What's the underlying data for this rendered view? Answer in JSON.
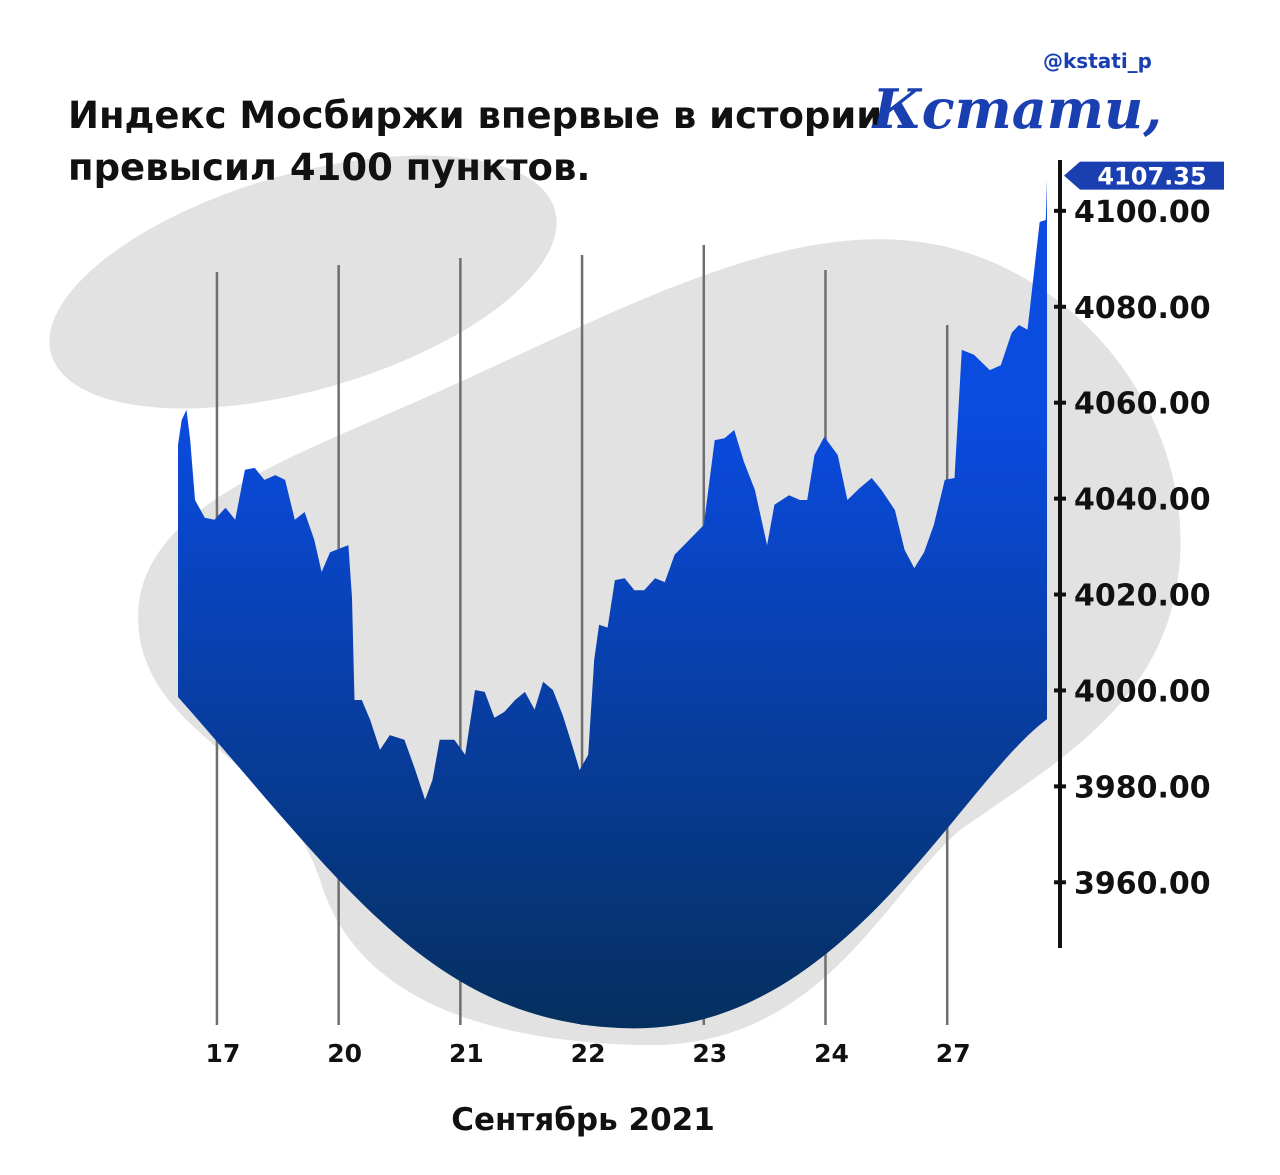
{
  "chart_data": {
    "type": "area",
    "title": [
      "Индекс Мосбиржи впервые в истории",
      "превысил 4100 пунктов."
    ],
    "source": "@kstati_p",
    "brand": "Кстати,",
    "x_label": "Сентябрь 2021",
    "color": "#0a4be0",
    "current_value": 4107.35,
    "xlim": [
      -0.32,
      6.82
    ],
    "xticks": [
      {
        "value": 0,
        "label": "17"
      },
      {
        "value": 1,
        "label": "20"
      },
      {
        "value": 2,
        "label": "21"
      },
      {
        "value": 3,
        "label": "22"
      },
      {
        "value": 4,
        "label": "23"
      },
      {
        "value": 5,
        "label": "24"
      },
      {
        "value": 6,
        "label": "27"
      }
    ],
    "ylim": [
      3946.3,
      4110.6
    ],
    "yticks": [
      {
        "value": 4100,
        "label": "4100.00"
      },
      {
        "value": 4080,
        "label": "4080.00"
      },
      {
        "value": 4060,
        "label": "4060.00"
      },
      {
        "value": 4040,
        "label": "4040.00"
      },
      {
        "value": 4020,
        "label": "4020.00"
      },
      {
        "value": 4000,
        "label": "4000.00"
      },
      {
        "value": 3980,
        "label": "3980.00"
      },
      {
        "value": 3960,
        "label": "3960.00"
      }
    ],
    "x": [
      -0.32,
      -0.29,
      -0.25,
      -0.22,
      -0.18,
      -0.1,
      -0.02,
      0.07,
      0.15,
      0.23,
      0.31,
      0.39,
      0.48,
      0.56,
      0.64,
      0.72,
      0.8,
      0.86,
      0.93,
      1.08,
      1.11,
      1.13,
      1.19,
      1.26,
      1.34,
      1.42,
      1.54,
      1.63,
      1.71,
      1.77,
      1.83,
      1.95,
      2.04,
      2.12,
      2.2,
      2.28,
      2.36,
      2.45,
      2.53,
      2.61,
      2.68,
      2.76,
      2.84,
      2.91,
      2.98,
      3.05,
      3.1,
      3.14,
      3.21,
      3.27,
      3.35,
      3.43,
      3.51,
      3.6,
      3.68,
      3.76,
      3.88,
      4.0,
      4.09,
      4.17,
      4.25,
      4.33,
      4.42,
      4.52,
      4.58,
      4.7,
      4.79,
      4.85,
      4.91,
      4.99,
      5.1,
      5.18,
      5.28,
      5.38,
      5.46,
      5.57,
      5.65,
      5.73,
      5.81,
      5.89,
      5.98,
      6.06,
      6.12,
      6.22,
      6.35,
      6.44,
      6.53,
      6.59,
      6.66,
      6.72,
      6.76,
      6.81,
      6.82
    ],
    "values": [
      4051.2,
      4056.4,
      4058.5,
      4052.2,
      4039.7,
      4036,
      4035.6,
      4038.1,
      4035.6,
      4046,
      4046.4,
      4043.9,
      4044.9,
      4043.9,
      4035.6,
      4037.2,
      4031.4,
      4024.7,
      4028.8,
      4030.3,
      4019.3,
      3998,
      3998,
      3993.8,
      3987.6,
      3990.7,
      3989.7,
      3983.4,
      3977.2,
      3981.3,
      3989.7,
      3989.7,
      3986.6,
      4000.1,
      3999.7,
      3994.3,
      3995.5,
      3998,
      3999.7,
      3996,
      4001.8,
      4000.1,
      3994.9,
      3989.3,
      3983.4,
      3986.6,
      4006.4,
      4013.7,
      4013.1,
      4023,
      4023.4,
      4020.9,
      4020.9,
      4023.4,
      4022.6,
      4028.3,
      4031.4,
      4034.5,
      4052.2,
      4052.6,
      4054.3,
      4047.7,
      4041.8,
      4030.3,
      4038.7,
      4040.7,
      4039.7,
      4039.7,
      4049.1,
      4052.9,
      4049.1,
      4039.7,
      4042.2,
      4044.3,
      4041.8,
      4037.6,
      4029.3,
      4025.5,
      4028.8,
      4034.5,
      4043.9,
      4044.3,
      4071,
      4070,
      4066.8,
      4067.8,
      4074.6,
      4076.2,
      4075.2,
      4088.7,
      4097.7,
      4098.1,
      4106.5
    ]
  }
}
